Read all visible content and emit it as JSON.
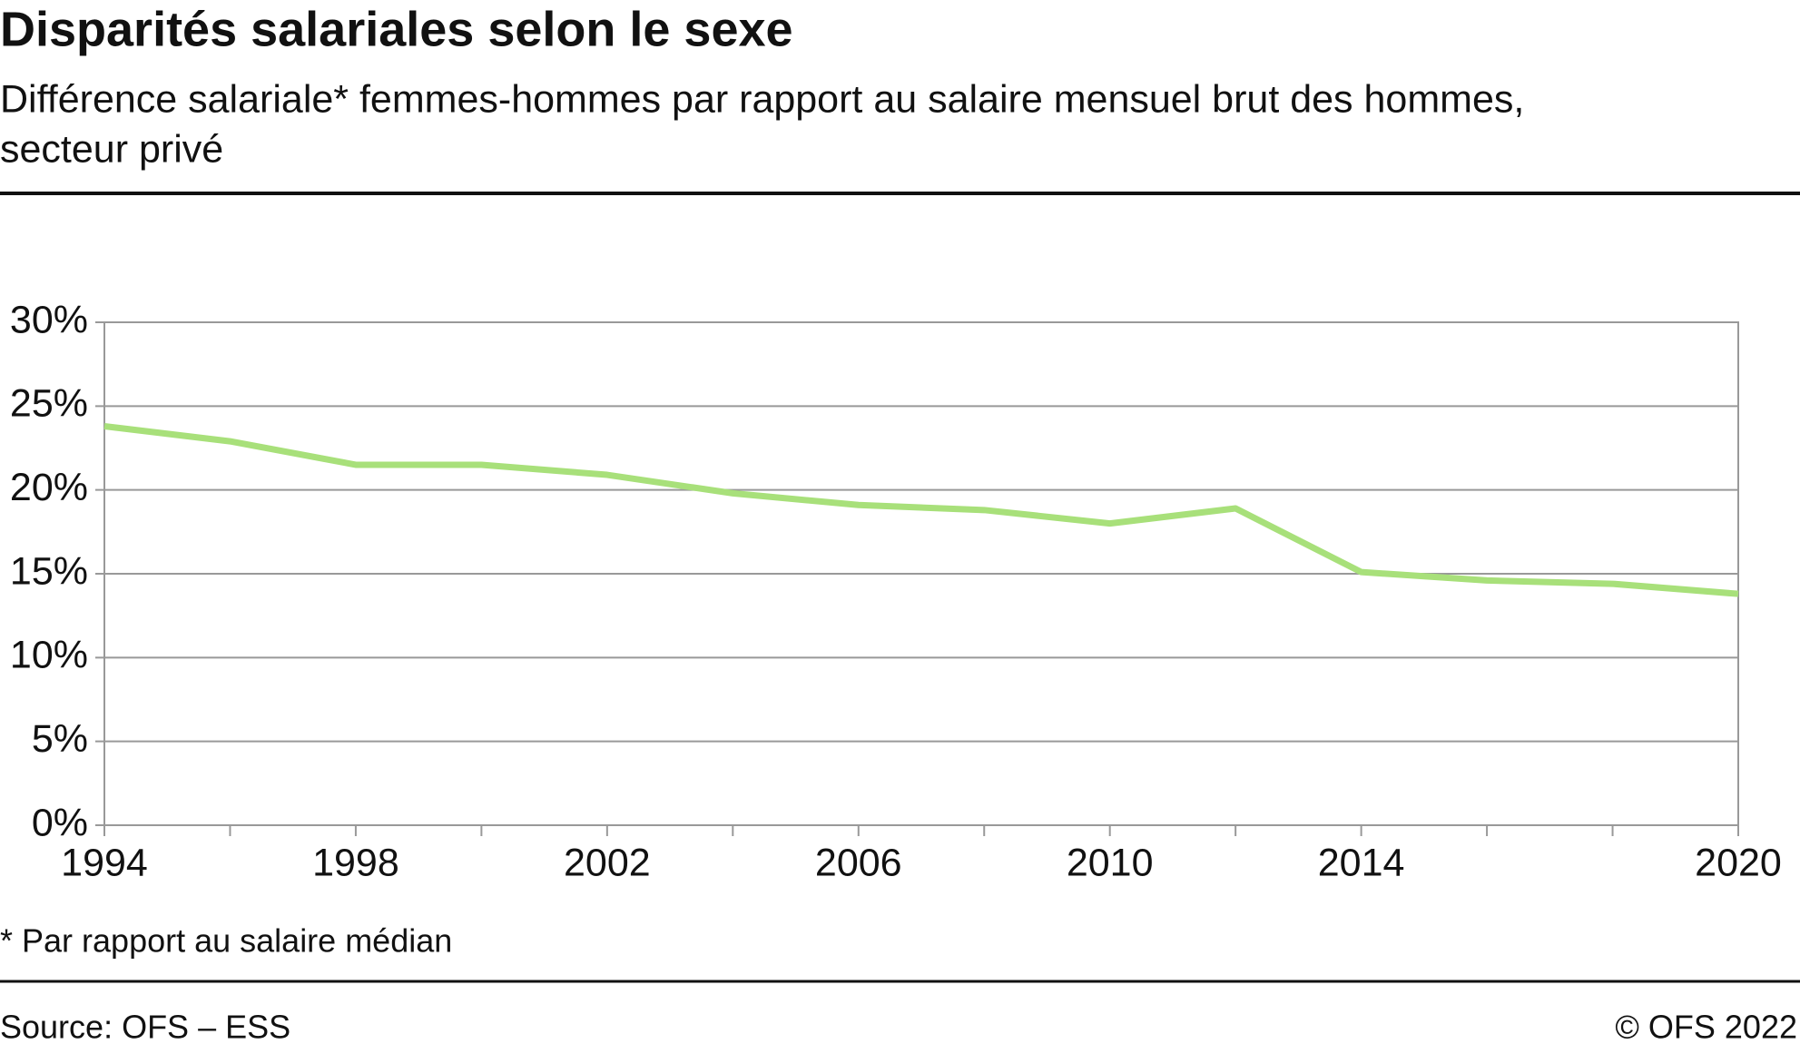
{
  "chart_data": {
    "type": "line",
    "title": "Disparités salariales selon le sexe",
    "subtitle": [
      "Différence salariale* femmes-hommes par rapport au salaire mensuel brut des hommes,",
      "secteur privé"
    ],
    "x": [
      1994,
      1996,
      1998,
      2000,
      2002,
      2004,
      2006,
      2008,
      2010,
      2012,
      2014,
      2016,
      2018,
      2020
    ],
    "series": [
      {
        "color": "#a8e07a",
        "values": [
          23.8,
          22.9,
          21.5,
          21.5,
          20.9,
          19.8,
          19.1,
          18.8,
          18.0,
          18.9,
          15.1,
          14.6,
          14.4,
          13.8
        ]
      }
    ],
    "xlim": [
      1994,
      2020
    ],
    "xticks": [
      1994,
      1998,
      2002,
      2006,
      2010,
      2014,
      2020
    ],
    "ylim": [
      0,
      30
    ],
    "yticks": [
      {
        "value": 0,
        "label": "0%"
      },
      {
        "value": 5,
        "label": "5%"
      },
      {
        "value": 10,
        "label": "10%"
      },
      {
        "value": 15,
        "label": "15%"
      },
      {
        "value": 20,
        "label": "20%"
      },
      {
        "value": 25,
        "label": "25%"
      },
      {
        "value": 30,
        "label": "30%"
      }
    ],
    "grid": true,
    "footnote": "* Par rapport au salaire médian",
    "source": "Source: OFS –  ESS",
    "copyright": "© OFS 2022"
  }
}
